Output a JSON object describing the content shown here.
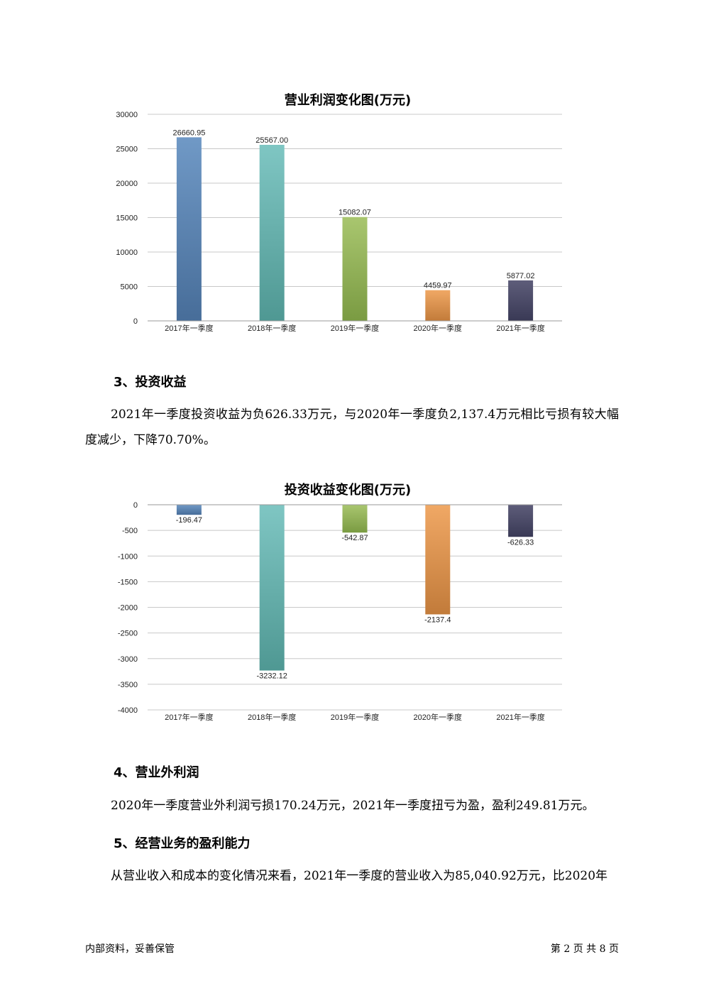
{
  "chart_data": [
    {
      "type": "bar",
      "title": "营业利润变化图(万元)",
      "categories": [
        "2017年一季度",
        "2018年一季度",
        "2019年一季度",
        "2020年一季度",
        "2021年一季度"
      ],
      "values": [
        26660.95,
        25567.0,
        15082.07,
        4459.97,
        5877.02
      ],
      "value_labels": [
        "26660.95",
        "25567.00",
        "15082.07",
        "4459.97",
        "5877.02"
      ],
      "y_ticks": [
        "30000",
        "25000",
        "20000",
        "15000",
        "10000",
        "5000",
        "0"
      ],
      "ylim": [
        0,
        30000
      ],
      "grid": true
    },
    {
      "type": "bar",
      "title": "投资收益变化图(万元)",
      "categories": [
        "2017年一季度",
        "2018年一季度",
        "2019年一季度",
        "2020年一季度",
        "2021年一季度"
      ],
      "values": [
        -196.47,
        -3232.12,
        -542.87,
        -2137.4,
        -626.33
      ],
      "value_labels": [
        "-196.47",
        "-3232.12",
        "-542.87",
        "-2137.4",
        "-626.33"
      ],
      "y_ticks": [
        "0",
        "-500",
        "-1000",
        "-1500",
        "-2000",
        "-2500",
        "-3000",
        "-3500",
        "-4000"
      ],
      "ylim": [
        -4000,
        0
      ],
      "grid": true
    }
  ],
  "bar_colors": [
    [
      "#7099c6",
      "#476d99"
    ],
    [
      "#7fc6c3",
      "#4f9893"
    ],
    [
      "#a9c66f",
      "#7a9b42"
    ],
    [
      "#f0a865",
      "#c27b3a"
    ],
    [
      "#5e5d7a",
      "#393955"
    ]
  ],
  "section3": {
    "heading": "3、投资收益",
    "text": "2021年一季度投资收益为负626.33万元，与2020年一季度负2,137.4万元相比亏损有较大幅度减少，下降70.70%。"
  },
  "section4": {
    "heading": "4、营业外利润",
    "text": "2020年一季度营业外利润亏损170.24万元，2021年一季度扭亏为盈，盈利249.81万元。"
  },
  "section5": {
    "heading": "5、经营业务的盈利能力",
    "text": "从营业收入和成本的变化情况来看，2021年一季度的营业收入为85,040.92万元，比2020年"
  },
  "footer": {
    "left": "内部资料，妥善保管",
    "right": "第 2 页   共 8 页"
  }
}
